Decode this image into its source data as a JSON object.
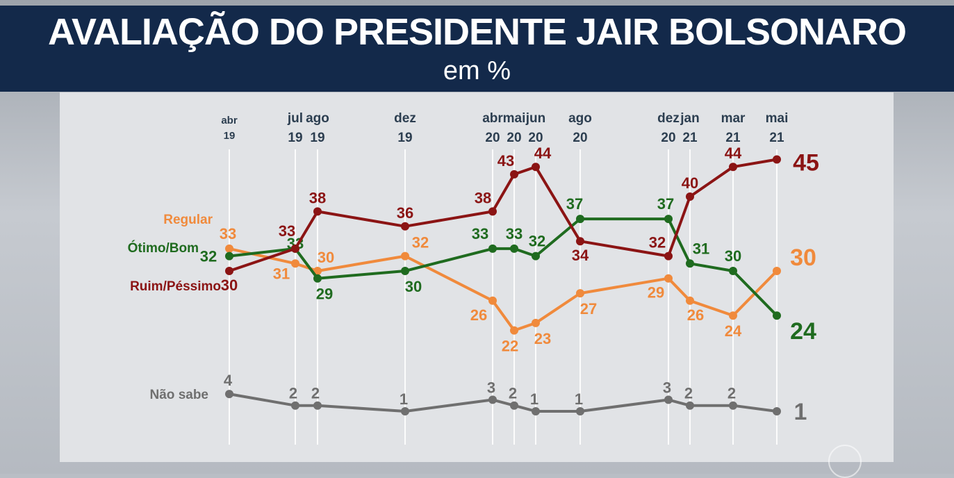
{
  "header": {
    "title": "AVALIAÇÃO DO PRESIDENTE JAIR BOLSONARO",
    "subtitle": "em %"
  },
  "chart_data": {
    "type": "line",
    "title": "AVALIAÇÃO DO PRESIDENTE JAIR BOLSONARO",
    "subtitle": "em %",
    "categories": [
      {
        "month": "abr",
        "year": "19"
      },
      {
        "month": "jul",
        "year": "19"
      },
      {
        "month": "ago",
        "year": "19"
      },
      {
        "month": "dez",
        "year": "19"
      },
      {
        "month": "abr",
        "year": "20"
      },
      {
        "month": "mai",
        "year": "20"
      },
      {
        "month": "jun",
        "year": "20"
      },
      {
        "month": "ago",
        "year": "20"
      },
      {
        "month": "dez",
        "year": "20"
      },
      {
        "month": "jan",
        "year": "21"
      },
      {
        "month": "mar",
        "year": "21"
      },
      {
        "month": "mai",
        "year": "21"
      }
    ],
    "series": [
      {
        "name": "Ruim/Péssimo",
        "color": "#8b1414",
        "values": [
          30,
          33,
          38,
          36,
          38,
          43,
          44,
          34,
          32,
          40,
          44,
          45
        ]
      },
      {
        "name": "Regular",
        "color": "#f08a3c",
        "values": [
          33,
          31,
          30,
          32,
          26,
          22,
          23,
          27,
          29,
          26,
          24,
          30
        ]
      },
      {
        "name": "Ótimo/Bom",
        "color": "#1f6b1f",
        "values": [
          32,
          33,
          29,
          30,
          33,
          33,
          32,
          37,
          37,
          31,
          30,
          24
        ]
      },
      {
        "name": "Não sabe",
        "color": "#6f6f6f",
        "values": [
          4,
          2,
          2,
          1,
          3,
          2,
          1,
          1,
          3,
          2,
          2,
          1
        ]
      }
    ]
  }
}
